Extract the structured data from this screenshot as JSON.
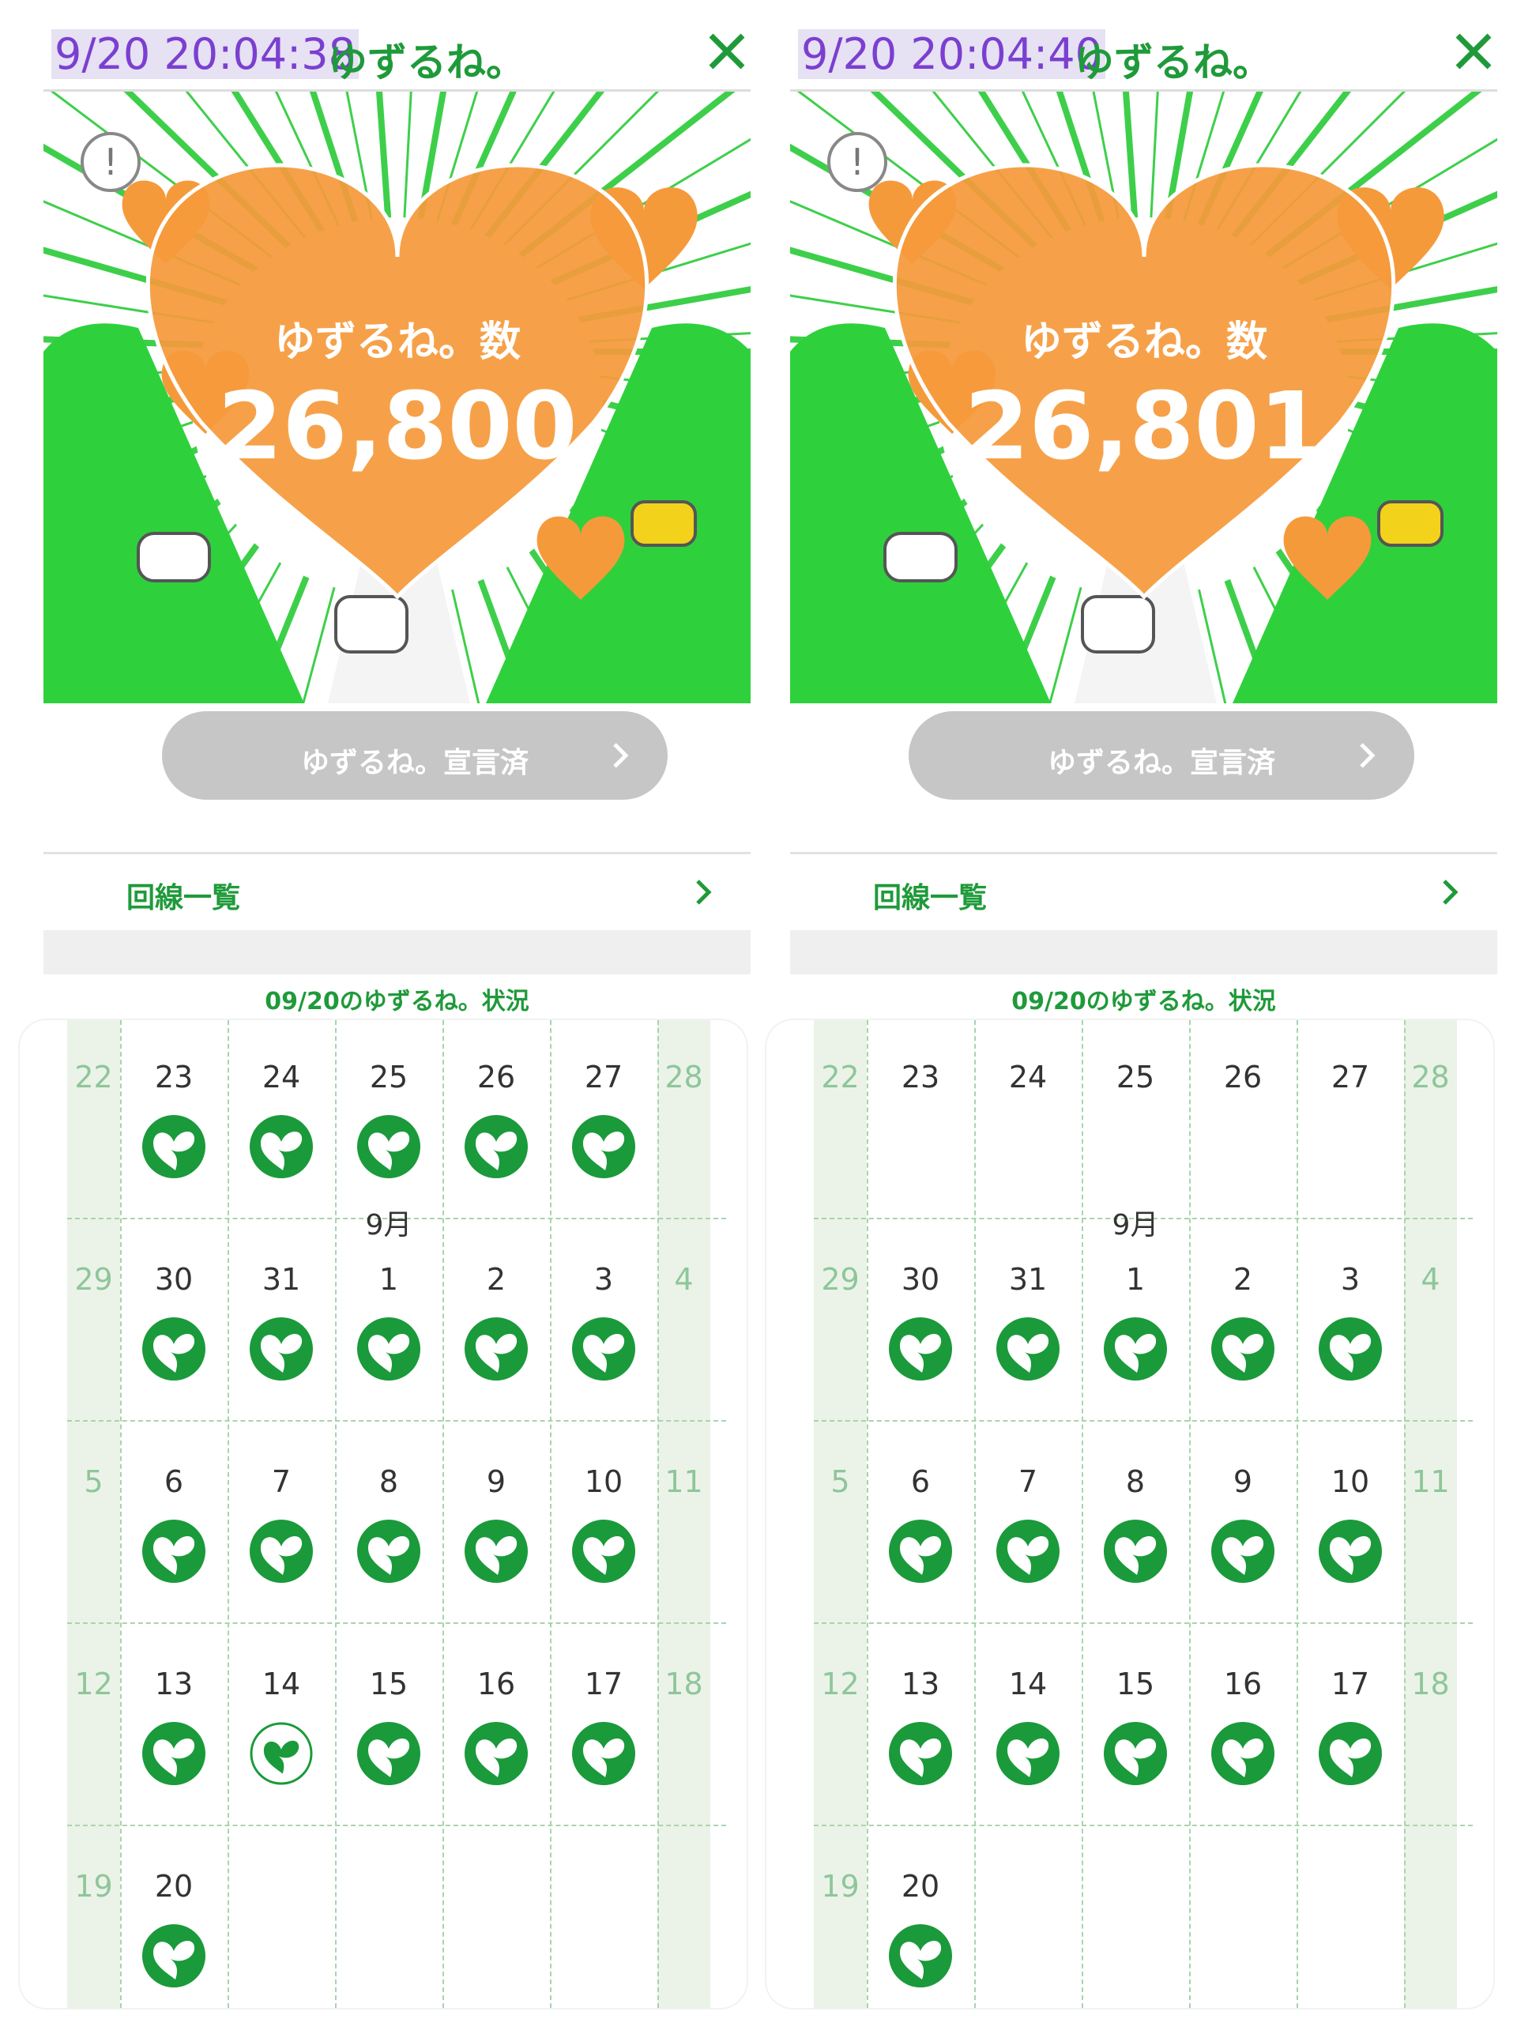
{
  "panels": [
    {
      "timestamp": "9/20 20:04:38",
      "title": "ゆずるね。",
      "count_label": "ゆずるね。数",
      "count": "26,800",
      "button": "ゆずるね。宣言済",
      "line_list": "回線一覧",
      "status_heading": "09/20のゆずるね。状況",
      "weeks": [
        {
          "days": [
            {
              "day": 22
            },
            {
              "day": 23,
              "stamp": "filled"
            },
            {
              "day": 24,
              "stamp": "filled"
            },
            {
              "day": 25,
              "stamp": "filled"
            },
            {
              "day": 26,
              "stamp": "filled"
            },
            {
              "day": 27,
              "stamp": "filled"
            },
            {
              "day": 28
            }
          ]
        },
        {
          "days": [
            {
              "day": 29
            },
            {
              "day": 30,
              "stamp": "filled"
            },
            {
              "day": 31,
              "stamp": "filled"
            },
            {
              "day": 1,
              "month": "9月",
              "stamp": "filled"
            },
            {
              "day": 2,
              "stamp": "filled"
            },
            {
              "day": 3,
              "stamp": "filled"
            },
            {
              "day": 4
            }
          ]
        },
        {
          "days": [
            {
              "day": 5
            },
            {
              "day": 6,
              "stamp": "filled"
            },
            {
              "day": 7,
              "stamp": "filled"
            },
            {
              "day": 8,
              "stamp": "filled"
            },
            {
              "day": 9,
              "stamp": "filled"
            },
            {
              "day": 10,
              "stamp": "filled"
            },
            {
              "day": 11
            }
          ]
        },
        {
          "days": [
            {
              "day": 12
            },
            {
              "day": 13,
              "stamp": "filled"
            },
            {
              "day": 14,
              "stamp": "outline"
            },
            {
              "day": 15,
              "stamp": "filled"
            },
            {
              "day": 16,
              "stamp": "filled"
            },
            {
              "day": 17,
              "stamp": "filled"
            },
            {
              "day": 18
            }
          ]
        },
        {
          "days": [
            {
              "day": 19
            },
            {
              "day": 20,
              "stamp": "filled"
            }
          ]
        }
      ]
    },
    {
      "timestamp": "9/20 20:04:40",
      "title": "ゆずるね。",
      "count_label": "ゆずるね。数",
      "count": "26,801",
      "button": "ゆずるね。宣言済",
      "line_list": "回線一覧",
      "status_heading": "09/20のゆずるね。状況",
      "weeks": [
        {
          "days": [
            {
              "day": 22
            },
            {
              "day": 23
            },
            {
              "day": 24
            },
            {
              "day": 25
            },
            {
              "day": 26
            },
            {
              "day": 27
            },
            {
              "day": 28
            }
          ]
        },
        {
          "days": [
            {
              "day": 29
            },
            {
              "day": 30,
              "stamp": "filled"
            },
            {
              "day": 31,
              "stamp": "filled"
            },
            {
              "day": 1,
              "month": "9月",
              "stamp": "filled"
            },
            {
              "day": 2,
              "stamp": "filled"
            },
            {
              "day": 3,
              "stamp": "filled"
            },
            {
              "day": 4
            }
          ]
        },
        {
          "days": [
            {
              "day": 5
            },
            {
              "day": 6,
              "stamp": "filled"
            },
            {
              "day": 7,
              "stamp": "filled"
            },
            {
              "day": 8,
              "stamp": "filled"
            },
            {
              "day": 9,
              "stamp": "filled"
            },
            {
              "day": 10,
              "stamp": "filled"
            },
            {
              "day": 11
            }
          ]
        },
        {
          "days": [
            {
              "day": 12
            },
            {
              "day": 13,
              "stamp": "filled"
            },
            {
              "day": 14,
              "stamp": "filled"
            },
            {
              "day": 15,
              "stamp": "filled"
            },
            {
              "day": 16,
              "stamp": "filled"
            },
            {
              "day": 17,
              "stamp": "filled"
            },
            {
              "day": 18
            }
          ]
        },
        {
          "days": [
            {
              "day": 19
            },
            {
              "day": 20,
              "stamp": "filled"
            }
          ]
        }
      ]
    }
  ]
}
